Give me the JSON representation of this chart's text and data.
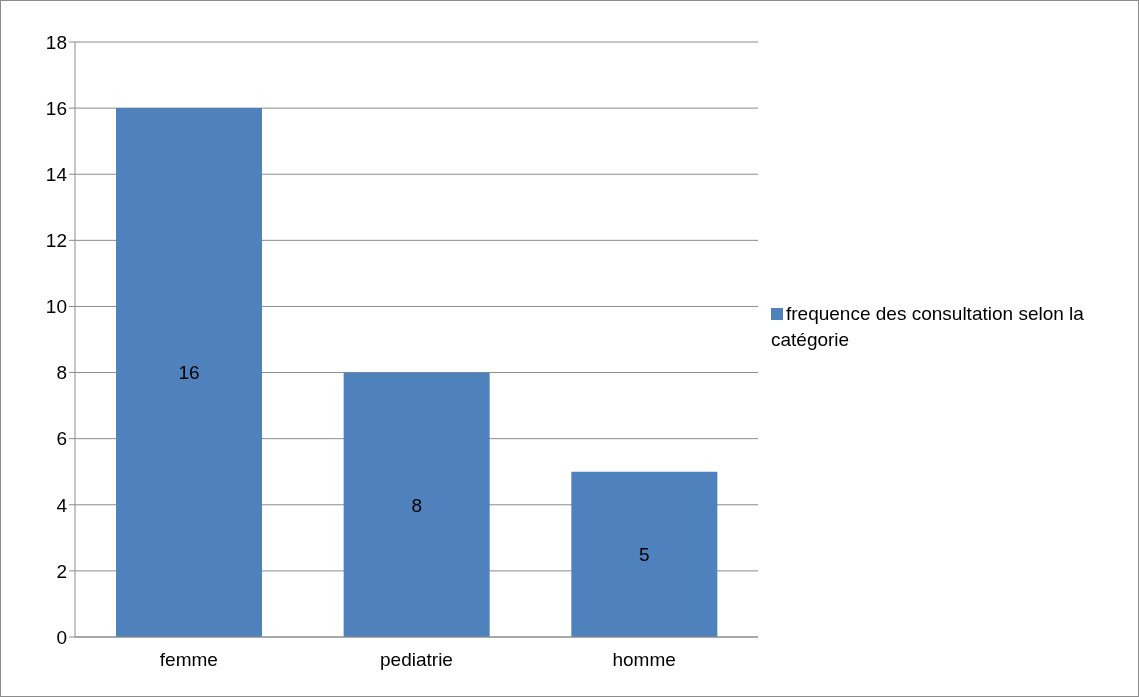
{
  "chart_data": {
    "type": "bar",
    "categories": [
      "femme",
      "pediatrie",
      "homme"
    ],
    "series": [
      {
        "name": "frequence des consultation selon la catégorie",
        "color": "#4f81bd",
        "values": [
          16,
          8,
          5
        ]
      }
    ],
    "ylim": [
      0,
      18
    ],
    "yticks": [
      0,
      2,
      4,
      6,
      8,
      10,
      12,
      14,
      16,
      18
    ],
    "grid": "y",
    "legend": "right",
    "data_labels": true
  }
}
